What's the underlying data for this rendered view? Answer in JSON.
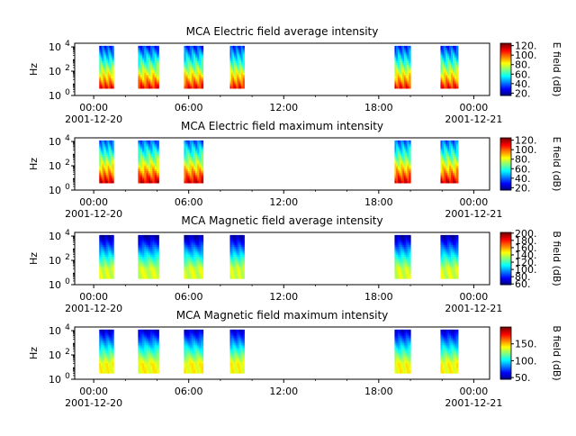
{
  "chart_data": [
    {
      "type": "heatmap",
      "title": "MCA  Electric field average intensity",
      "ylabel": "Hz",
      "colorbar_label": "E field (dB)",
      "colorbar_range": [
        15,
        125
      ],
      "colorbar_ticks": [
        "20.",
        "40.",
        "60.",
        "80.",
        "100.",
        "120."
      ],
      "x_ticks": [
        "00:00",
        "06:00",
        "12:00",
        "18:00",
        "00:00"
      ],
      "x_tick_hours": [
        0,
        6,
        12,
        18,
        24
      ],
      "x_date_labels": [
        "2001-12-20",
        "2001-12-21"
      ],
      "xlim_hours": [
        -1.2,
        25
      ],
      "y_ticks": [
        "10^0",
        "10^2",
        "10^4"
      ],
      "ylim_log10": [
        0,
        4.3
      ],
      "passes": [
        {
          "start_h": 0.35,
          "end_h": 1.25
        },
        {
          "start_h": 2.8,
          "end_h": 4.1
        },
        {
          "start_h": 5.7,
          "end_h": 6.9
        },
        {
          "start_h": 8.6,
          "end_h": 9.5
        },
        {
          "start_h": 19.0,
          "end_h": 20.0
        },
        {
          "start_h": 21.9,
          "end_h": 23.0
        }
      ]
    },
    {
      "type": "heatmap",
      "title": "MCA  Electric field maximum intensity",
      "ylabel": "Hz",
      "colorbar_label": "E field (dB)",
      "colorbar_range": [
        15,
        125
      ],
      "colorbar_ticks": [
        "20.",
        "40.",
        "60.",
        "80.",
        "100.",
        "120."
      ],
      "x_ticks": [
        "00:00",
        "06:00",
        "12:00",
        "18:00",
        "00:00"
      ],
      "x_tick_hours": [
        0,
        6,
        12,
        18,
        24
      ],
      "x_date_labels": [
        "2001-12-20",
        "2001-12-21"
      ],
      "xlim_hours": [
        -1.2,
        25
      ],
      "y_ticks": [
        "10^0",
        "10^2",
        "10^4"
      ],
      "ylim_log10": [
        0,
        4.3
      ],
      "passes": [
        {
          "start_h": 0.35,
          "end_h": 1.25
        },
        {
          "start_h": 2.8,
          "end_h": 4.1
        },
        {
          "start_h": 5.7,
          "end_h": 6.9
        },
        {
          "start_h": 19.0,
          "end_h": 20.0
        },
        {
          "start_h": 21.9,
          "end_h": 23.0
        }
      ]
    },
    {
      "type": "heatmap",
      "title": "MCA  Magnetic field average intensity",
      "ylabel": "Hz",
      "colorbar_label": "B field (dB)",
      "colorbar_range": [
        58,
        202
      ],
      "colorbar_ticks": [
        "60.",
        "80.",
        "100.",
        "120.",
        "140.",
        "160.",
        "180.",
        "200."
      ],
      "x_ticks": [
        "00:00",
        "06:00",
        "12:00",
        "18:00",
        "00:00"
      ],
      "x_tick_hours": [
        0,
        6,
        12,
        18,
        24
      ],
      "x_date_labels": [
        "2001-12-20",
        "2001-12-21"
      ],
      "xlim_hours": [
        -1.2,
        25
      ],
      "y_ticks": [
        "10^0",
        "10^2",
        "10^4"
      ],
      "ylim_log10": [
        0,
        4.3
      ],
      "passes": [
        {
          "start_h": 0.35,
          "end_h": 1.25
        },
        {
          "start_h": 2.8,
          "end_h": 4.1
        },
        {
          "start_h": 5.7,
          "end_h": 6.9
        },
        {
          "start_h": 8.6,
          "end_h": 9.5
        },
        {
          "start_h": 19.0,
          "end_h": 20.0
        },
        {
          "start_h": 21.9,
          "end_h": 23.0
        }
      ]
    },
    {
      "type": "heatmap",
      "title": "MCA  Magnetic field maximum intensity",
      "ylabel": "Hz",
      "colorbar_label": "B field (dB)",
      "colorbar_range": [
        45,
        200
      ],
      "colorbar_ticks": [
        "50.",
        "100.",
        "150."
      ],
      "x_ticks": [
        "00:00",
        "06:00",
        "12:00",
        "18:00",
        "00:00"
      ],
      "x_tick_hours": [
        0,
        6,
        12,
        18,
        24
      ],
      "x_date_labels": [
        "2001-12-20",
        "2001-12-21"
      ],
      "xlim_hours": [
        -1.2,
        25
      ],
      "y_ticks": [
        "10^0",
        "10^2",
        "10^4"
      ],
      "ylim_log10": [
        0,
        4.3
      ],
      "passes": [
        {
          "start_h": 0.35,
          "end_h": 1.25
        },
        {
          "start_h": 2.8,
          "end_h": 4.1
        },
        {
          "start_h": 5.7,
          "end_h": 6.9
        },
        {
          "start_h": 8.6,
          "end_h": 9.5
        },
        {
          "start_h": 19.0,
          "end_h": 20.0
        },
        {
          "start_h": 21.9,
          "end_h": 23.0
        }
      ]
    }
  ]
}
